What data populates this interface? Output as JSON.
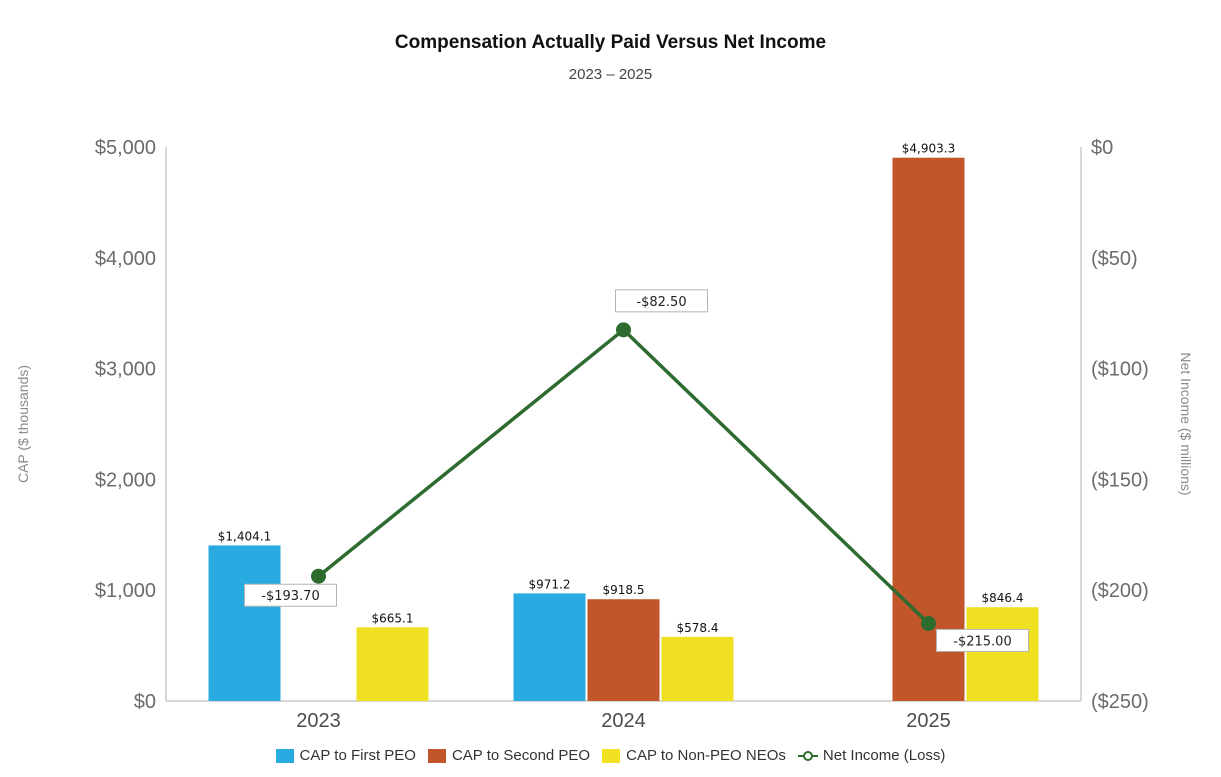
{
  "chart_data": {
    "type": "bar",
    "title": "Compensation Actually Paid Versus Net Income",
    "subtitle": "2023 – 2025",
    "categories": [
      "2023",
      "2024",
      "2025"
    ],
    "ylabel": "CAP ($ thousands)",
    "y2label": "Net Income ($ millions)",
    "ylim": [
      0,
      5000
    ],
    "y2lim": [
      -250,
      0
    ],
    "yticks": [
      0,
      1000,
      2000,
      3000,
      4000,
      5000
    ],
    "yticklabels": [
      "$0",
      "$1,000",
      "$2,000",
      "$3,000",
      "$4,000",
      "$5,000"
    ],
    "y2ticks": [
      -250,
      -200,
      -150,
      -100,
      -50,
      0
    ],
    "y2ticklabels": [
      "($250)",
      "($200)",
      "($150)",
      "($100)",
      "($50)",
      "$0"
    ],
    "series": [
      {
        "name": "CAP to First PEO",
        "color": "#29abe2",
        "values": [
          1404.1,
          971.2,
          null
        ],
        "labels": [
          "$1,404.1",
          "$971.2",
          null
        ]
      },
      {
        "name": "CAP to Second PEO",
        "color": "#c0562a",
        "values": [
          null,
          918.5,
          4903.3
        ],
        "labels": [
          null,
          "$918.5",
          "$4,903.3"
        ]
      },
      {
        "name": "CAP to Non-PEO NEOs",
        "color": "#f0e022",
        "values": [
          665.1,
          578.4,
          846.4
        ],
        "labels": [
          "$665.1",
          "$578.4",
          "$846.4"
        ]
      }
    ],
    "line": {
      "name": "Net Income (Loss)",
      "color": "#2e6b2e",
      "values": [
        -193.7,
        -82.5,
        -215.0
      ],
      "labels": [
        "-$193.70",
        "-$82.50",
        "-$215.00"
      ]
    },
    "legend": "bottom"
  }
}
